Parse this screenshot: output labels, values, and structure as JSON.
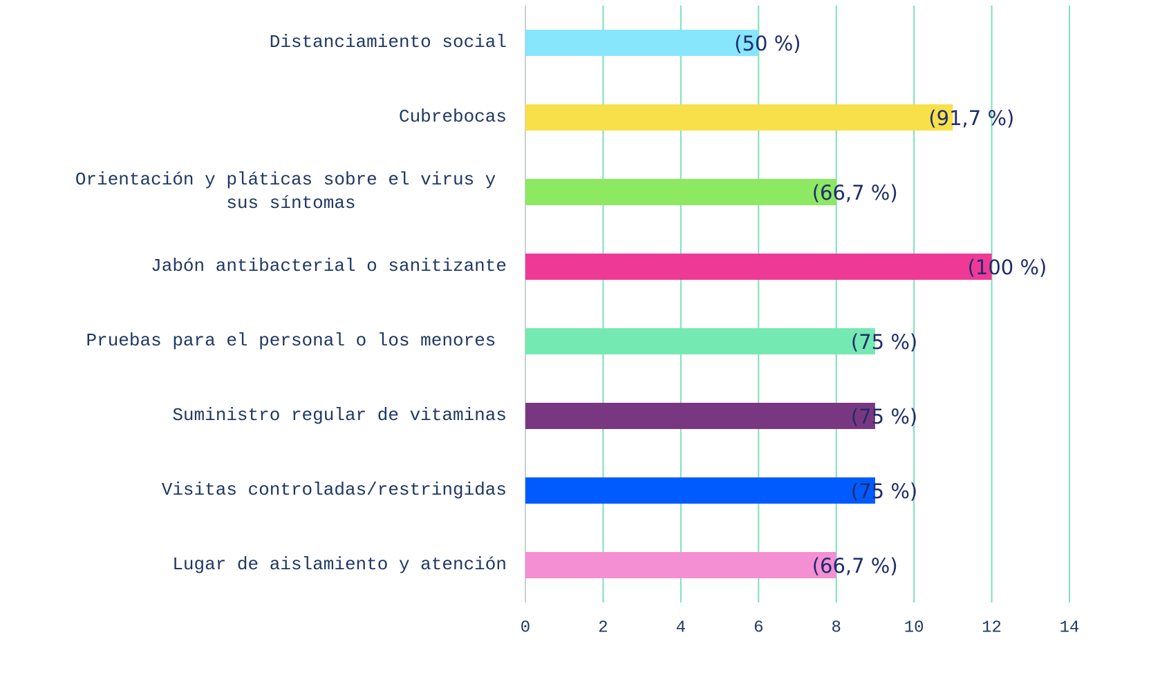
{
  "chart_data": {
    "type": "hbar",
    "categories": [
      "Distanciamiento social",
      "Cubrebocas",
      "Orientación y pláticas sobre el virus y \nsus síntomas",
      "Jabón antibacterial o sanitizante",
      "Pruebas para el personal o los menores ",
      "Suministro regular de vitaminas",
      "Visitas controladas/restringidas",
      "Lugar de aislamiento y atención"
    ],
    "values": [
      6,
      11,
      8,
      12,
      9,
      9,
      9,
      8
    ],
    "annotations": [
      "(50 %)",
      "(91,7 %)",
      "(66,7 %)",
      "(100 %)",
      "(75 %)",
      "(75 %)",
      "(75 %)",
      "(66,7 %)"
    ],
    "colors": [
      "#87e5fc",
      "#f7e04a",
      "#8de862",
      "#ef3997",
      "#75e9b2",
      "#7a3781",
      "#005bff",
      "#f48fd4"
    ],
    "xlim": [
      0,
      14
    ],
    "xticks": [
      0,
      2,
      4,
      6,
      8,
      10,
      12,
      14
    ],
    "grid": true
  }
}
